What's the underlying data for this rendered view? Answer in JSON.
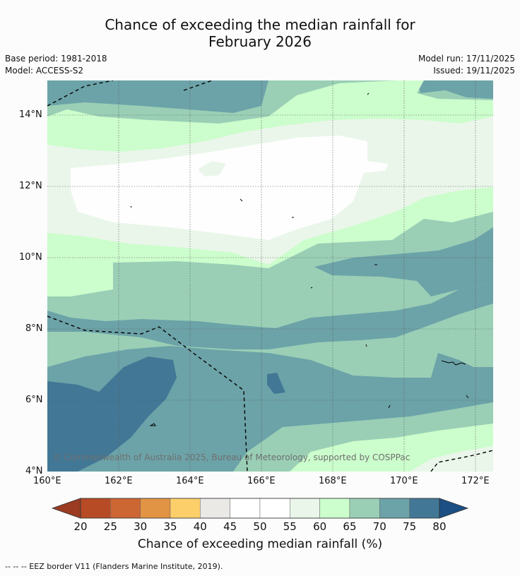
{
  "title": {
    "line1": "Chance of exceeding the median rainfall for",
    "line2": "February 2026"
  },
  "meta": {
    "base_period": "Base period: 1981-2018",
    "model": "Model: ACCESS-S2",
    "model_run": "Model run: 17/11/2025",
    "issued": "Issued: 19/11/2025"
  },
  "map": {
    "lat_ticks": [
      "14°N",
      "12°N",
      "10°N",
      "8°N",
      "6°N",
      "4°N"
    ],
    "lon_ticks": [
      "160°E",
      "162°E",
      "164°E",
      "166°E",
      "168°E",
      "170°E",
      "172°E"
    ],
    "copyright": "© Commonwealth of Australia 2025, Bureau of Meteorology, supported by COSPPac"
  },
  "colorbar": {
    "labels": [
      "20",
      "25",
      "30",
      "35",
      "40",
      "45",
      "50",
      "55",
      "60",
      "65",
      "70",
      "75",
      "80"
    ],
    "colors": [
      "#9a3b22",
      "#b64b25",
      "#cc6633",
      "#e19444",
      "#fdcf6b",
      "#eae9e6",
      "#ffffff",
      "#ffffff",
      "#eaf6ea",
      "#ccfdcc",
      "#9acfb6",
      "#6ca3a8",
      "#427896",
      "#1c4f84"
    ],
    "title": "Chance of exceeding median rainfall (%)"
  },
  "zone_colors": {
    "p60": "#eaf6ea",
    "p65": "#ccfdcc",
    "p70": "#9acfb6",
    "p75": "#6ca3a8",
    "p80": "#427896",
    "p50": "#fdfefd"
  },
  "footer": "--  --  -- EEZ border V11 (Flanders Marine Institute, 2019)."
}
